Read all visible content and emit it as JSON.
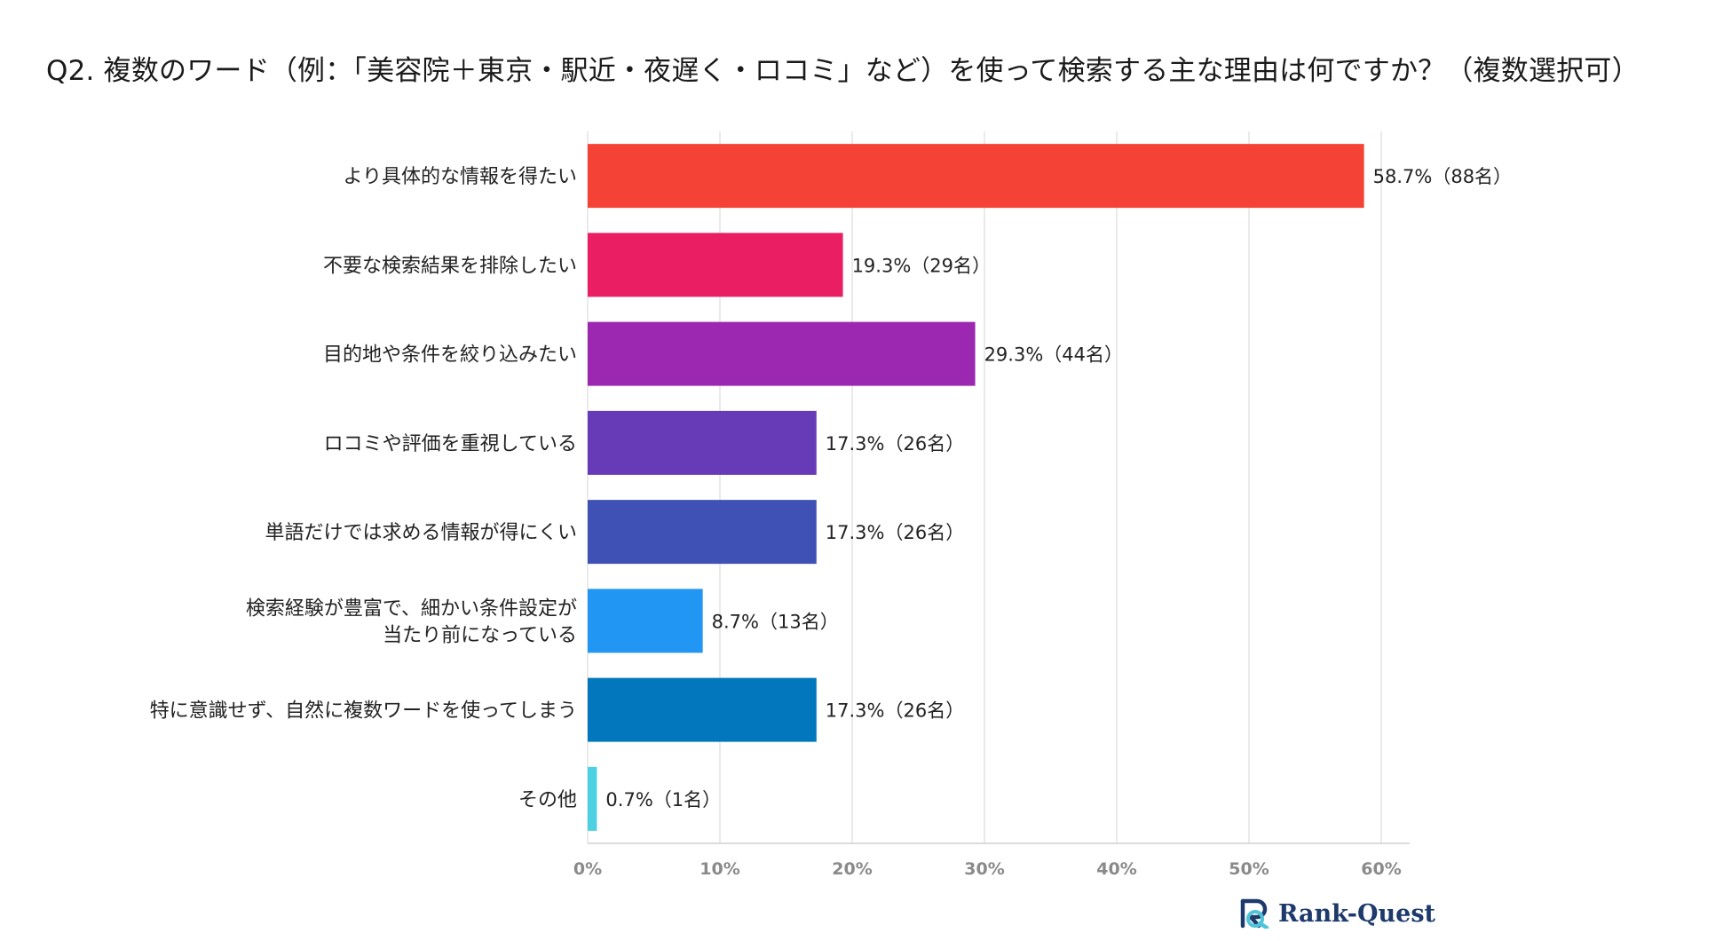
{
  "title": "Q2. 複数のワード（例：「美容院＋東京・駅近・夜遅く・ロコミ」など）を使って検索する主な理由は何ですか？（複数選択可）",
  "brand": {
    "name": "Rank-Quest"
  },
  "chart_data": {
    "type": "bar",
    "orientation": "horizontal",
    "title": "Q2. 複数のワード（例：「美容院＋東京・駅近・夜遅く・ロコミ」など）を使って検索する主な理由は何ですか？（複数選択可）",
    "xlim": [
      0,
      60
    ],
    "x_ticks": [
      "0%",
      "10%",
      "20%",
      "30%",
      "40%",
      "50%",
      "60%"
    ],
    "grid": true,
    "categories": [
      [
        "より具体的な情報を得たい"
      ],
      [
        "不要な検索結果を排除したい"
      ],
      [
        "目的地や条件を絞り込みたい"
      ],
      [
        "ロコミや評価を重視している"
      ],
      [
        "単語だけでは求める情報が得にくい"
      ],
      [
        "検索経験が豊富で、細かい条件設定が",
        "当たり前になっている"
      ],
      [
        "特に意識せず、自然に複数ワードを使ってしまう"
      ],
      [
        "その他"
      ]
    ],
    "values": [
      58.7,
      19.3,
      29.3,
      17.3,
      17.3,
      8.7,
      17.3,
      0.7
    ],
    "data_labels": [
      "58.7%（88名）",
      "19.3%（29名）",
      "29.3%（44名）",
      "17.3%（26名）",
      "17.3%（26名）",
      "8.7%（13名）",
      "17.3%（26名）",
      "0.7%（1名）"
    ],
    "colors": [
      "#f44336",
      "#e91e63",
      "#9c27b0",
      "#673ab7",
      "#3f51b5",
      "#2196f3",
      "#0277bd",
      "#4dd0e1"
    ]
  }
}
